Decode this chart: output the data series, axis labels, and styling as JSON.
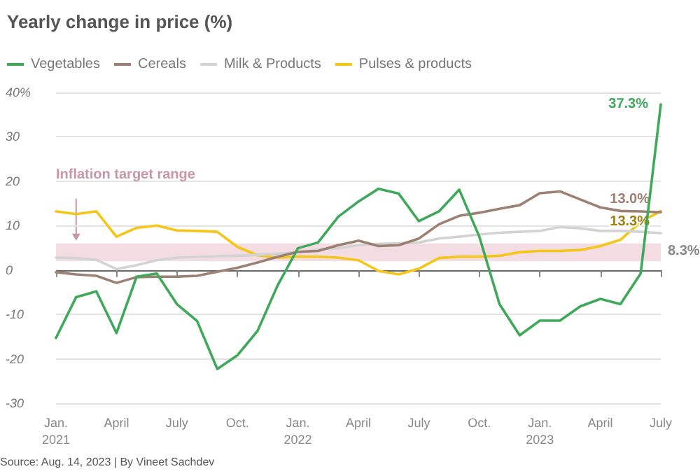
{
  "chart_data": {
    "type": "line",
    "title": "Yearly change in price (%)",
    "categories": [
      "Jan.\n2021",
      null,
      null,
      "April",
      null,
      null,
      "July",
      null,
      null,
      "Oct.",
      null,
      null,
      "Jan.\n2022",
      null,
      null,
      "April",
      null,
      null,
      "July",
      null,
      null,
      "Oct.",
      null,
      null,
      "Jan.\n2023",
      null,
      null,
      "April",
      null,
      null,
      "July"
    ],
    "series": [
      {
        "name": "Vegetables",
        "color": "#3fa85a",
        "values": [
          -15.3,
          -6.1,
          -4.8,
          -14.2,
          -1.5,
          -0.8,
          -7.7,
          -11.5,
          -22.3,
          -19.2,
          -13.7,
          -3.4,
          4.9,
          6.2,
          12,
          15.4,
          18.3,
          17.2,
          11,
          13.2,
          18.1,
          7.5,
          -7.7,
          -14.7,
          -11.4,
          -11.4,
          -8.2,
          -6.5,
          -7.7,
          -0.8,
          37.3
        ],
        "value_labels": [
          null,
          null,
          null,
          null,
          null,
          null,
          null,
          null,
          null,
          null,
          null,
          null,
          null,
          null,
          null,
          null,
          null,
          null,
          null,
          null,
          null,
          null,
          null,
          null,
          null,
          null,
          null,
          null,
          null,
          null,
          "37.3%"
        ]
      },
      {
        "name": "Cereals",
        "color": "#9c8073",
        "values": [
          -0.5,
          -1,
          -1.3,
          -2.9,
          -1.6,
          -1.5,
          -1.5,
          -1.3,
          -0.4,
          0.5,
          1.7,
          3,
          4.1,
          4.3,
          5.6,
          6.6,
          5.4,
          5.6,
          7.1,
          10.3,
          12.2,
          12.9,
          13.8,
          14.6,
          17.3,
          17.7,
          15.9,
          14.1,
          13.3,
          13.2,
          13
        ],
        "value_labels": [
          null,
          null,
          null,
          null,
          null,
          null,
          null,
          null,
          null,
          null,
          null,
          null,
          null,
          null,
          null,
          null,
          null,
          null,
          null,
          null,
          null,
          null,
          null,
          null,
          null,
          null,
          null,
          null,
          null,
          null,
          "13.0%"
        ]
      },
      {
        "name": "Milk & Products",
        "color": "#d3d3d3",
        "values": [
          2.8,
          2.7,
          2.3,
          0.2,
          1.1,
          2.2,
          2.8,
          2.9,
          3.1,
          3.2,
          3.4,
          3.7,
          4,
          4.6,
          4.9,
          5.6,
          5.9,
          6,
          6.2,
          7.1,
          7.5,
          8,
          8.4,
          8.6,
          8.8,
          9.7,
          9.4,
          8.8,
          8.8,
          8.6,
          8.3
        ],
        "value_labels": [
          null,
          null,
          null,
          null,
          null,
          null,
          null,
          null,
          null,
          null,
          null,
          null,
          null,
          null,
          null,
          null,
          null,
          null,
          null,
          null,
          null,
          null,
          null,
          null,
          null,
          null,
          null,
          null,
          null,
          null,
          "8.3%"
        ]
      },
      {
        "name": "Pulses & products",
        "color": "#f5c518",
        "values": [
          13.2,
          12.6,
          13.2,
          7.5,
          9.5,
          10,
          8.9,
          8.8,
          8.6,
          5.2,
          3.3,
          2.8,
          3,
          3,
          2.8,
          2.2,
          -0.2,
          -1,
          0.3,
          2.7,
          3,
          3,
          3.2,
          4,
          4.3,
          4.3,
          4.5,
          5.4,
          6.8,
          10.8,
          13.3
        ],
        "value_labels": [
          null,
          null,
          null,
          null,
          null,
          null,
          null,
          null,
          null,
          null,
          null,
          null,
          null,
          null,
          null,
          null,
          null,
          null,
          null,
          null,
          null,
          null,
          null,
          null,
          null,
          null,
          null,
          null,
          null,
          null,
          "13.3%"
        ]
      }
    ],
    "ylim": [
      -30,
      40
    ],
    "yticks": [
      -30,
      -20,
      -10,
      0,
      10,
      20,
      30,
      {
        "value": 40,
        "label": "40%"
      }
    ],
    "grid": "y",
    "legend": "top left",
    "marker": "none",
    "line_style": "solid",
    "bands": [
      {
        "axis": "y",
        "from": 2,
        "to": 6,
        "label": "Inflation target range",
        "color": "#f3dde3"
      }
    ],
    "annotations": [
      "Source: Aug. 14, 2023 | By Vineet Sachdev"
    ]
  }
}
